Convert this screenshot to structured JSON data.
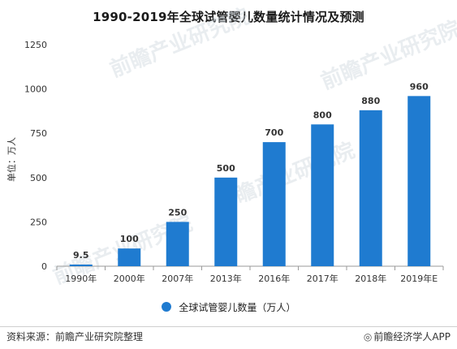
{
  "chart_data": {
    "type": "bar",
    "title": "1990-2019年全球试管婴儿数量统计情况及预测",
    "ylabel": "单位：万人",
    "xlabel": "",
    "categories": [
      "1990年",
      "2000年",
      "2007年",
      "2013年",
      "2016年",
      "2017年",
      "2018年",
      "2019年E"
    ],
    "values": [
      9.5,
      100,
      250,
      500,
      700,
      800,
      880,
      960
    ],
    "data_labels": [
      "9.5",
      "100",
      "250",
      "500",
      "700",
      "800",
      "880",
      "960"
    ],
    "yticks": [
      0,
      250,
      500,
      750,
      1000,
      1250
    ],
    "ylim": [
      0,
      1250
    ],
    "series": [
      {
        "name": "全球试管婴儿数量（万人）",
        "color": "#1f7bd0"
      }
    ],
    "legend_position": "bottom-center",
    "grid": false
  },
  "footer": {
    "source": "资料来源：前瞻产业研究院整理",
    "brand": "前瞻经济学人APP"
  },
  "watermark": {
    "text": "前瞻产业研究院"
  }
}
